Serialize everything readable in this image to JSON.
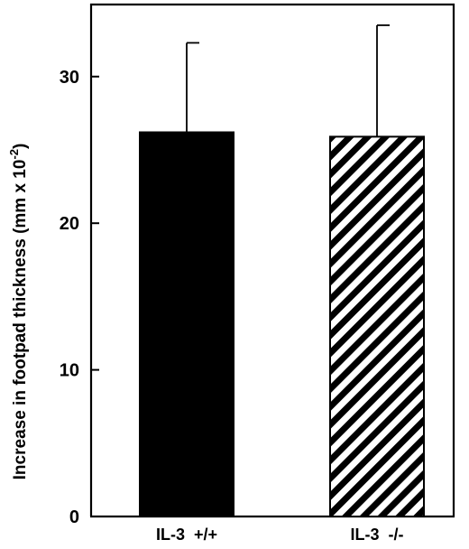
{
  "chart_data": {
    "type": "bar",
    "categories": [
      "IL-3  +/+",
      "IL-3  -/-"
    ],
    "values": [
      26.2,
      25.9
    ],
    "error": [
      6.1,
      7.6
    ],
    "ylabel": "Increase in footpad thickness (mm x 10",
    "ylabel_exp": "-2",
    "ylabel_close": ")",
    "yticks": [
      0,
      10,
      20,
      30
    ],
    "ylim": [
      0,
      35.6
    ],
    "fills": [
      "#000000",
      "hatch"
    ],
    "grid": false
  }
}
